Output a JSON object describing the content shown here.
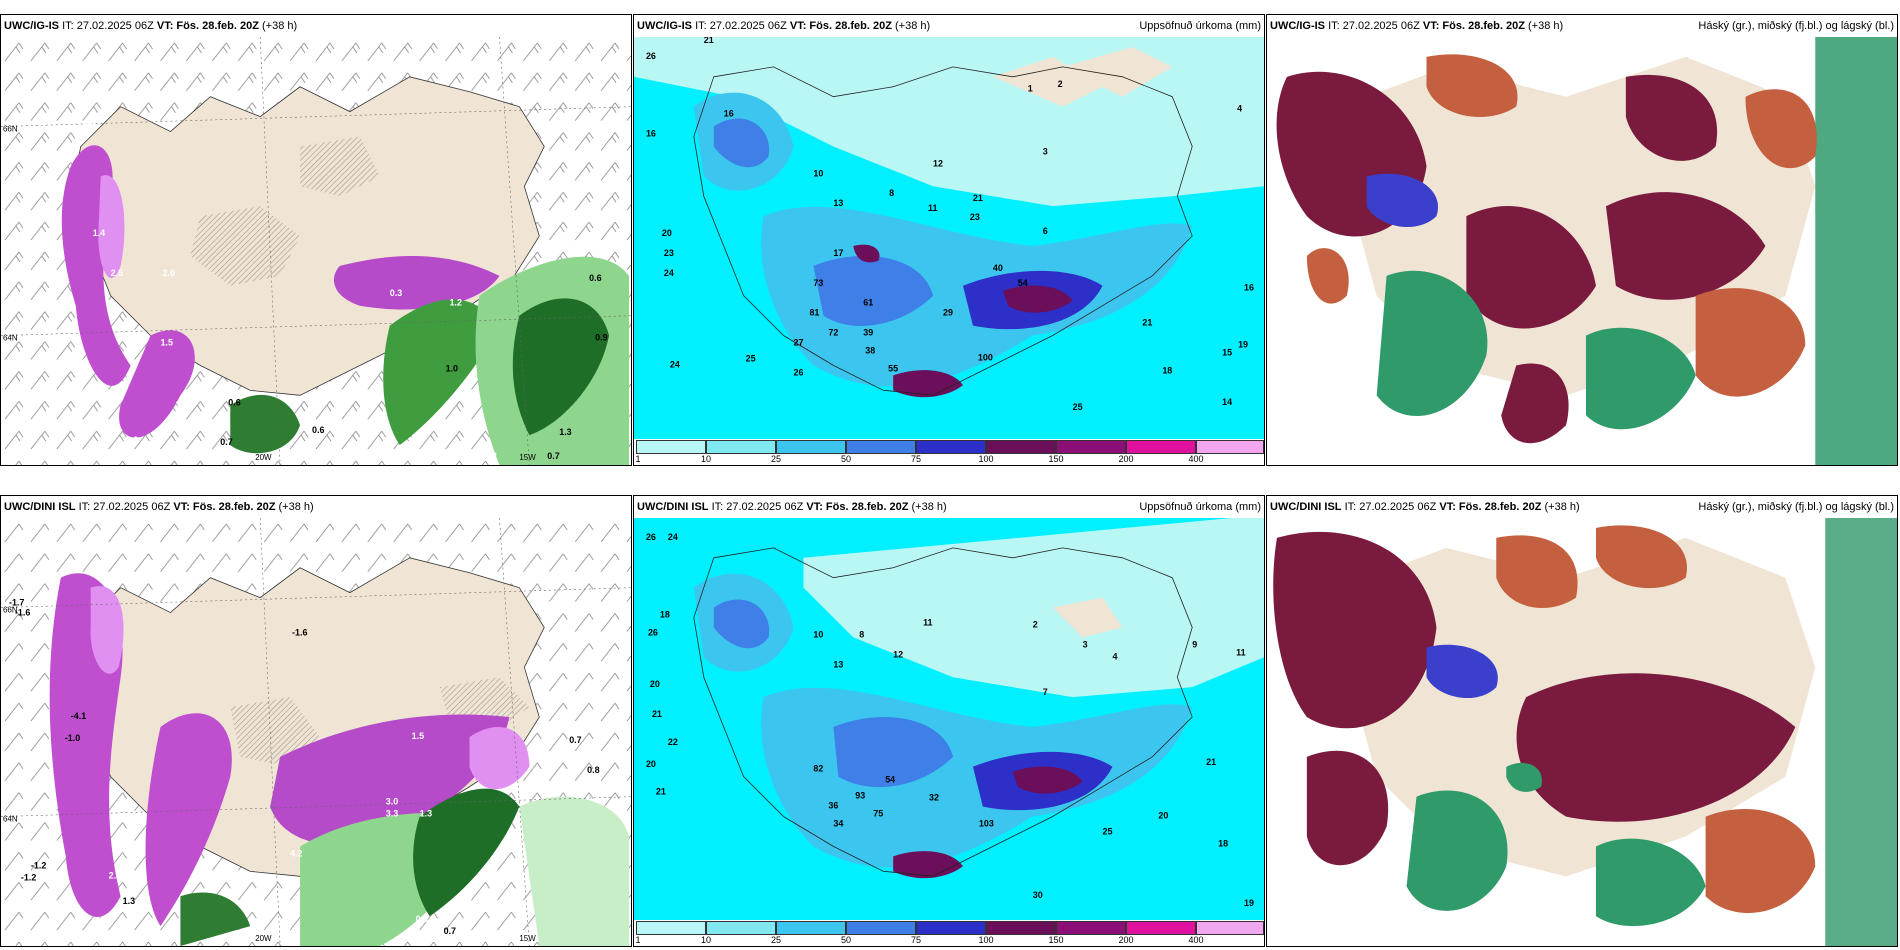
{
  "panels": [
    {
      "model": "UWC/IG-IS",
      "it": "IT: 27.02.2025 06Z",
      "vt_label": "VT:",
      "vt": "Fös. 28.feb. 20Z",
      "lead": "(+38 h)",
      "right": ""
    },
    {
      "model": "UWC/IG-IS",
      "it": "IT: 27.02.2025 06Z",
      "vt_label": "VT:",
      "vt": "Fös. 28.feb. 20Z",
      "lead": "(+38 h)",
      "right": "Uppsöfnuð úrkoma (mm)"
    },
    {
      "model": "UWC/IG-IS",
      "it": "IT: 27.02.2025 06Z",
      "vt_label": "VT:",
      "vt": "Fös. 28.feb. 20Z",
      "lead": "(+38 h)",
      "right": "Háský (gr.), miðský (fj.bl.) og lágský (bl.)"
    },
    {
      "model": "UWC/DINI ISL",
      "it": "IT: 27.02.2025 06Z",
      "vt_label": "VT:",
      "vt": "Fös. 28.feb. 20Z",
      "lead": "(+38 h)",
      "right": ""
    },
    {
      "model": "UWC/DINI ISL",
      "it": "IT: 27.02.2025 06Z",
      "vt_label": "VT:",
      "vt": "Fös. 28.feb. 20Z",
      "lead": "(+38 h)",
      "right": "Uppsöfnuð úrkoma (mm)"
    },
    {
      "model": "UWC/DINI ISL",
      "it": "IT: 27.02.2025 06Z",
      "vt_label": "VT:",
      "vt": "Fös. 28.feb. 20Z",
      "lead": "(+38 h)",
      "right": "Háský (gr.), miðský (fj.bl.) og lágský (bl.)"
    }
  ],
  "precip_colorbar": {
    "ticks": [
      "1",
      "10",
      "25",
      "50",
      "75",
      "100",
      "150",
      "200",
      "400"
    ],
    "colors": [
      "#b8f5f5",
      "#7fe8f0",
      "#3cc6ef",
      "#3f7fe8",
      "#2c2fc8",
      "#6b0f5a",
      "#8c0e77",
      "#e0109e",
      "#f2a6ef"
    ]
  },
  "temp_labels_top": [
    "0.6",
    "1.4",
    "2.5",
    "2.0",
    "1.2",
    "0.6",
    "0.3",
    "1.2",
    "0.6",
    "0.9",
    "0.7",
    "2.2",
    "2.8",
    "1.5",
    "1.0",
    "0.6",
    "0.2",
    "0.7",
    "1.3"
  ],
  "temp_labels_bottom": [
    "-1.7",
    "-1.6",
    "-1.2",
    "-1.0",
    "-4.1",
    "-1.2",
    "2.3",
    "2.8",
    "1.3",
    "3.0",
    "3.3",
    "1.5",
    "0.7",
    "0.8",
    "0.3",
    "0.7",
    "-1.6",
    "4.2",
    "1.3"
  ],
  "axis_labels": [
    "66N",
    "64N",
    "20W",
    "15W"
  ],
  "precip_labels_top": [
    "26",
    "21",
    "16",
    "16",
    "20",
    "23",
    "24",
    "24",
    "26",
    "73",
    "81",
    "61",
    "72",
    "39",
    "38",
    "55",
    "27",
    "25",
    "29",
    "40",
    "54",
    "100",
    "17",
    "18",
    "16",
    "15",
    "19",
    "14",
    "25",
    "21",
    "10",
    "13",
    "8",
    "11",
    "12",
    "21",
    "23",
    "6",
    "3",
    "2",
    "1",
    "4"
  ],
  "precip_labels_bottom": [
    "26",
    "24",
    "18",
    "26",
    "20",
    "21",
    "22",
    "20",
    "21",
    "82",
    "93",
    "54",
    "75",
    "32",
    "36",
    "34",
    "103",
    "30",
    "25",
    "20",
    "21",
    "18",
    "19",
    "11",
    "10",
    "13",
    "8",
    "11",
    "12",
    "2",
    "3",
    "7",
    "9",
    "4"
  ],
  "colors": {
    "land": "#f0e4d4",
    "sea_top": "#00f0ff",
    "precip_light": "#b9f7f5",
    "cloud_high": "#7a1a3e",
    "cloud_mid": "#c4603f",
    "cloud_low": "#2f9a6a"
  }
}
